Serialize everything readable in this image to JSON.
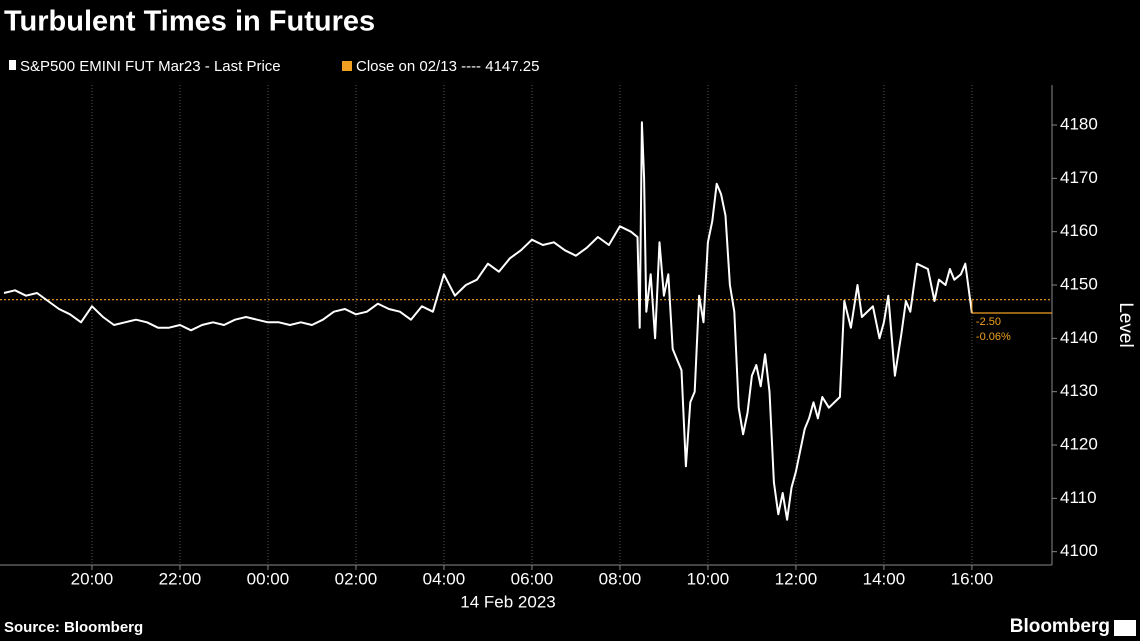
{
  "chart_data": {
    "type": "line",
    "title": "Turbulent Times in Futures",
    "x_label": "14 Feb 2023",
    "y_label": "Level",
    "source": "Source: Bloomberg",
    "brand": "Bloomberg",
    "x": [
      0,
      0.25,
      0.5,
      0.75,
      1,
      1.25,
      1.5,
      1.75,
      2,
      2.25,
      2.5,
      2.75,
      3,
      3.25,
      3.5,
      3.75,
      4,
      4.25,
      4.5,
      4.75,
      5,
      5.25,
      5.5,
      5.75,
      6,
      6.25,
      6.5,
      6.75,
      7,
      7.25,
      7.5,
      7.75,
      8,
      8.25,
      8.5,
      8.75,
      9,
      9.25,
      9.5,
      9.75,
      10,
      10.25,
      10.5,
      10.75,
      11,
      11.25,
      11.5,
      11.75,
      12,
      12.25,
      12.5,
      12.75,
      13,
      13.25,
      13.5,
      13.75,
      14,
      14.25,
      14.4,
      14.45,
      14.5,
      14.55,
      14.6,
      14.7,
      14.8,
      14.9,
      15,
      15.1,
      15.2,
      15.3,
      15.4,
      15.5,
      15.6,
      15.7,
      15.8,
      15.9,
      16,
      16.1,
      16.2,
      16.3,
      16.4,
      16.5,
      16.6,
      16.7,
      16.8,
      16.9,
      17,
      17.1,
      17.2,
      17.3,
      17.4,
      17.5,
      17.6,
      17.7,
      17.8,
      17.9,
      18,
      18.1,
      18.2,
      18.3,
      18.4,
      18.5,
      18.6,
      18.75,
      19,
      19.1,
      19.25,
      19.4,
      19.5,
      19.75,
      19.9,
      20,
      20.1,
      20.25,
      20.4,
      20.5,
      20.6,
      20.75,
      21,
      21.15,
      21.25,
      21.4,
      21.5,
      21.6,
      21.75,
      21.85,
      22
    ],
    "series": [
      {
        "name": "S&P500 EMINI FUT Mar23 - Last Price",
        "color": "#ffffff",
        "values": [
          4148.5,
          4149,
          4148,
          4148.5,
          4147,
          4145.5,
          4144.5,
          4143,
          4146,
          4144,
          4142.5,
          4143,
          4143.5,
          4143,
          4142,
          4142,
          4142.5,
          4141.5,
          4142.5,
          4143,
          4142.5,
          4143.5,
          4144,
          4143.5,
          4143,
          4143,
          4142.5,
          4143,
          4142.5,
          4143.5,
          4145,
          4145.5,
          4144.5,
          4145,
          4146.5,
          4145.5,
          4145,
          4143.5,
          4146,
          4145,
          4152,
          4148,
          4150,
          4151,
          4154,
          4152.5,
          4155,
          4156.5,
          4158.5,
          4157.5,
          4158,
          4156.5,
          4155.5,
          4157,
          4159,
          4157.5,
          4161,
          4160,
          4159,
          4142,
          4180.5,
          4170,
          4145,
          4152,
          4140,
          4158,
          4148,
          4152,
          4138,
          4136,
          4134,
          4116,
          4128,
          4130,
          4148,
          4143,
          4158,
          4162,
          4169,
          4167,
          4163,
          4150,
          4145,
          4127,
          4122,
          4126,
          4133,
          4135,
          4131,
          4137,
          4130,
          4113,
          4107,
          4111,
          4106,
          4112,
          4115,
          4119,
          4123,
          4125,
          4128,
          4125,
          4129,
          4127,
          4129,
          4147,
          4142,
          4150,
          4144,
          4146,
          4140,
          4143,
          4148,
          4133,
          4141,
          4147,
          4145,
          4154,
          4153,
          4147,
          4151,
          4150,
          4153,
          4151,
          4152,
          4154,
          4144.75
        ]
      }
    ],
    "reference": {
      "name": "Close on 02/13 ---- 4147.25",
      "value": 4147.25,
      "color": "#f0a020"
    },
    "change": "-2.50",
    "change_pct": "-0.06%",
    "xlim": [
      -0.09,
      23.82
    ],
    "xticks": [
      {
        "value": 2,
        "label": "20:00"
      },
      {
        "value": 4,
        "label": "22:00"
      },
      {
        "value": 6,
        "label": "00:00"
      },
      {
        "value": 8,
        "label": "02:00"
      },
      {
        "value": 10,
        "label": "04:00"
      },
      {
        "value": 12,
        "label": "06:00"
      },
      {
        "value": 14,
        "label": "08:00"
      },
      {
        "value": 16,
        "label": "10:00"
      },
      {
        "value": 18,
        "label": "12:00"
      },
      {
        "value": 20,
        "label": "14:00"
      },
      {
        "value": 22,
        "label": "16:00"
      }
    ],
    "ylim": [
      4097.5,
      4187.5
    ],
    "yticks": [
      4100,
      4110,
      4120,
      4130,
      4140,
      4150,
      4160,
      4170,
      4180
    ],
    "grid": true
  }
}
